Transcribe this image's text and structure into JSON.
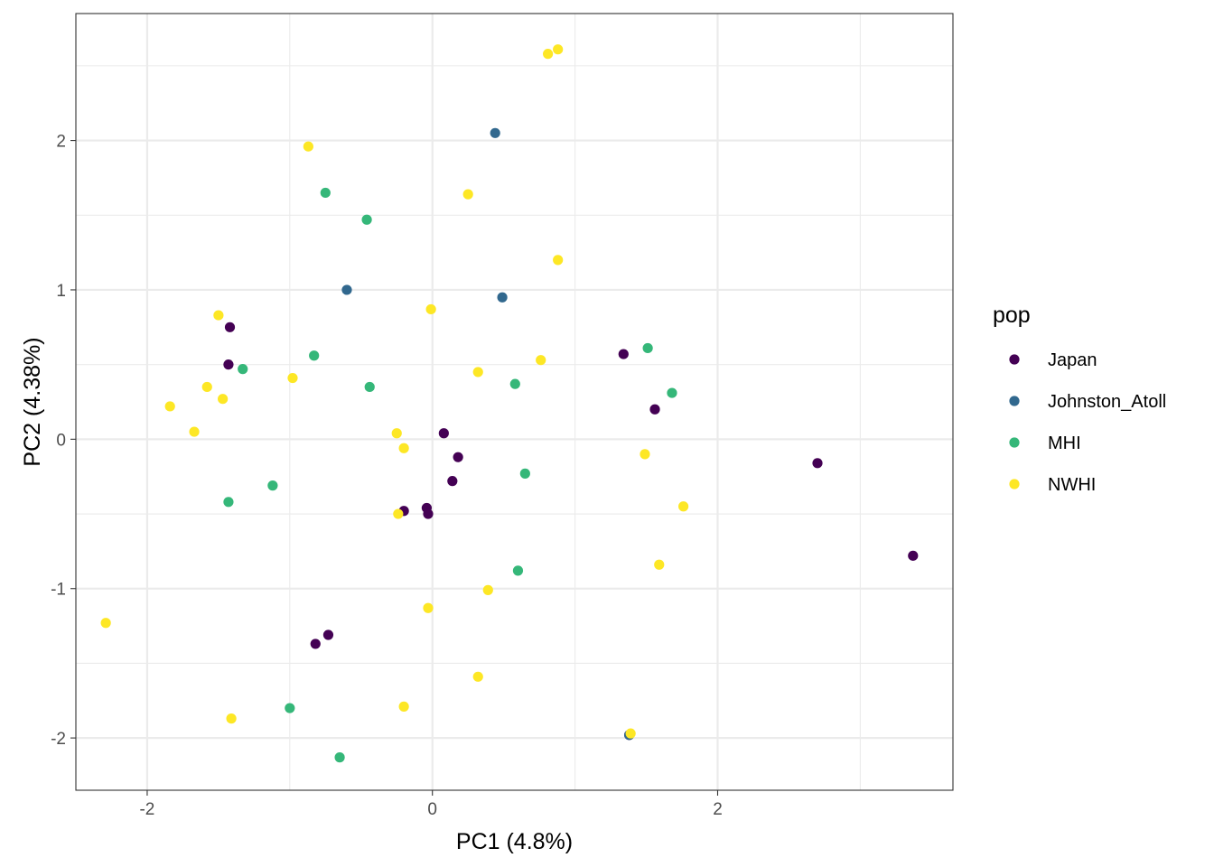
{
  "chart_data": {
    "type": "scatter",
    "title": "",
    "xlabel": "PC1 (4.8%)",
    "ylabel": "PC2 (4.38%)",
    "xlim": [
      -2.5,
      3.65
    ],
    "ylim": [
      -2.35,
      2.85
    ],
    "xticks": [
      -2,
      0,
      2
    ],
    "yticks": [
      -2,
      -1,
      0,
      1,
      2
    ],
    "xtick_labels": [
      "-2",
      "0",
      "2"
    ],
    "ytick_labels": [
      "-2",
      "-1",
      "0",
      "1",
      "2"
    ],
    "x_minor_gridlines": [
      -1,
      1,
      3
    ],
    "y_minor_gridlines": [
      -1.5,
      -0.5,
      0.5,
      1.5,
      2.5
    ],
    "grid": true,
    "legend": {
      "title": "pop",
      "position": "right",
      "entries": [
        "Japan",
        "Johnston_Atoll",
        "MHI",
        "NWHI"
      ]
    },
    "colors": {
      "Japan": "#440154",
      "Johnston_Atoll": "#31688E",
      "MHI": "#35B779",
      "NWHI": "#FDE725"
    },
    "series": [
      {
        "name": "Japan",
        "points": [
          {
            "x": -1.42,
            "y": 0.75
          },
          {
            "x": -1.43,
            "y": 0.5
          },
          {
            "x": 0.08,
            "y": 0.04
          },
          {
            "x": 0.18,
            "y": -0.12
          },
          {
            "x": 0.14,
            "y": -0.28
          },
          {
            "x": -0.04,
            "y": -0.46
          },
          {
            "x": -0.2,
            "y": -0.48
          },
          {
            "x": -0.03,
            "y": -0.5
          },
          {
            "x": -0.82,
            "y": -1.37
          },
          {
            "x": -0.73,
            "y": -1.31
          },
          {
            "x": 1.34,
            "y": 0.57
          },
          {
            "x": 1.56,
            "y": 0.2
          },
          {
            "x": 2.7,
            "y": -0.16
          },
          {
            "x": 3.37,
            "y": -0.78
          },
          {
            "x": 1.38,
            "y": -1.98
          }
        ]
      },
      {
        "name": "Johnston_Atoll",
        "points": [
          {
            "x": 0.44,
            "y": 2.05
          },
          {
            "x": -0.6,
            "y": 1.0
          },
          {
            "x": 0.49,
            "y": 0.95
          },
          {
            "x": 1.38,
            "y": -1.98
          }
        ]
      },
      {
        "name": "MHI",
        "points": [
          {
            "x": -0.75,
            "y": 1.65
          },
          {
            "x": -0.46,
            "y": 1.47
          },
          {
            "x": -0.83,
            "y": 0.56
          },
          {
            "x": -1.33,
            "y": 0.47
          },
          {
            "x": -0.44,
            "y": 0.35
          },
          {
            "x": 0.58,
            "y": 0.37
          },
          {
            "x": 1.51,
            "y": 0.61
          },
          {
            "x": 1.68,
            "y": 0.31
          },
          {
            "x": 0.65,
            "y": -0.23
          },
          {
            "x": -1.12,
            "y": -0.31
          },
          {
            "x": -1.43,
            "y": -0.42
          },
          {
            "x": 0.6,
            "y": -0.88
          },
          {
            "x": -1.0,
            "y": -1.8
          },
          {
            "x": -0.65,
            "y": -2.13
          }
        ]
      },
      {
        "name": "NWHI",
        "points": [
          {
            "x": 0.81,
            "y": 2.58
          },
          {
            "x": 0.88,
            "y": 2.61
          },
          {
            "x": -0.87,
            "y": 1.96
          },
          {
            "x": 0.25,
            "y": 1.64
          },
          {
            "x": 0.88,
            "y": 1.2
          },
          {
            "x": -0.01,
            "y": 0.87
          },
          {
            "x": -1.5,
            "y": 0.83
          },
          {
            "x": -0.98,
            "y": 0.41
          },
          {
            "x": 0.32,
            "y": 0.45
          },
          {
            "x": 0.76,
            "y": 0.53
          },
          {
            "x": -1.58,
            "y": 0.35
          },
          {
            "x": -1.47,
            "y": 0.27
          },
          {
            "x": -1.84,
            "y": 0.22
          },
          {
            "x": -1.67,
            "y": 0.05
          },
          {
            "x": -0.25,
            "y": 0.04
          },
          {
            "x": -0.2,
            "y": -0.06
          },
          {
            "x": 1.49,
            "y": -0.1
          },
          {
            "x": 1.76,
            "y": -0.45
          },
          {
            "x": -0.24,
            "y": -0.5
          },
          {
            "x": 1.59,
            "y": -0.84
          },
          {
            "x": 0.39,
            "y": -1.01
          },
          {
            "x": -0.03,
            "y": -1.13
          },
          {
            "x": -2.29,
            "y": -1.23
          },
          {
            "x": 0.32,
            "y": -1.59
          },
          {
            "x": -0.2,
            "y": -1.79
          },
          {
            "x": -1.41,
            "y": -1.87
          },
          {
            "x": 1.39,
            "y": -1.97
          }
        ]
      }
    ]
  }
}
